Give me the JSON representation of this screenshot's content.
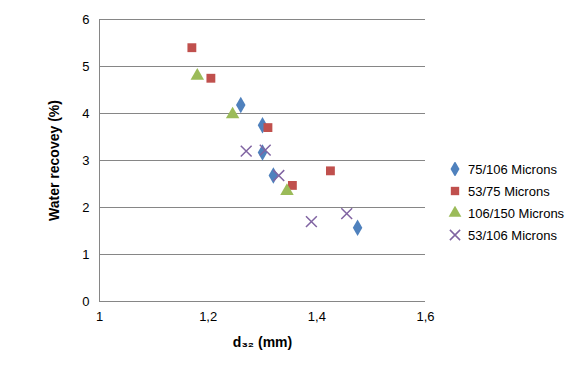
{
  "chart_data": {
    "type": "scatter",
    "x_label": "d₃₂ (mm)",
    "y_label": "Water recovey (%)",
    "xlim": [
      1,
      1.6
    ],
    "xticks": [
      1,
      {
        "value": 1.2,
        "label": "1,2"
      },
      {
        "value": 1.4,
        "label": "1,4"
      },
      {
        "value": 1.6,
        "label": "1,6"
      }
    ],
    "ylim": [
      0,
      6
    ],
    "yticks": [
      0,
      1,
      2,
      3,
      4,
      5,
      6
    ],
    "grid": true,
    "legend": "right",
    "series": [
      {
        "name": "75/106 Microns",
        "color": "#4f81bd",
        "marker": "diamond",
        "x": [
          1.26,
          1.3,
          1.3,
          1.32,
          1.475
        ],
        "values": [
          4.18,
          3.75,
          3.17,
          2.68,
          1.57
        ]
      },
      {
        "name": "53/75 Microns",
        "color": "#c0504d",
        "marker": "square",
        "x": [
          1.17,
          1.205,
          1.31,
          1.355,
          1.425
        ],
        "values": [
          5.4,
          4.75,
          3.7,
          2.47,
          2.78
        ]
      },
      {
        "name": "106/150 Microns",
        "color": "#9bbb59",
        "marker": "triangle",
        "x": [
          1.18,
          1.245,
          1.345
        ],
        "values": [
          4.8,
          3.98,
          2.35
        ]
      },
      {
        "name": "53/106 Microns",
        "color": "#8064a2",
        "marker": "x",
        "x": [
          1.27,
          1.305,
          1.33,
          1.39,
          1.455
        ],
        "values": [
          3.2,
          3.22,
          2.68,
          1.7,
          1.87
        ]
      }
    ]
  }
}
